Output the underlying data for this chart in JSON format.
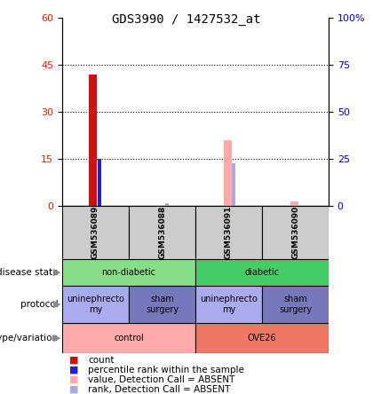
{
  "title": "GDS3990 / 1427532_at",
  "samples": [
    "GSM536089",
    "GSM536088",
    "GSM536091",
    "GSM536090"
  ],
  "bar_positions": [
    0,
    1,
    2,
    3
  ],
  "count_values": [
    42,
    0,
    0,
    0
  ],
  "percentile_values": [
    15,
    0,
    0,
    0
  ],
  "absent_value_values": [
    0,
    0,
    21,
    1.5
  ],
  "absent_rank_values": [
    0,
    0.8,
    13.5,
    0
  ],
  "ylim_left": [
    0,
    60
  ],
  "ylim_right": [
    0,
    100
  ],
  "yticks_left": [
    0,
    15,
    30,
    45,
    60
  ],
  "yticks_right": [
    0,
    25,
    50,
    75,
    100
  ],
  "ytick_labels_right": [
    "0",
    "25",
    "50",
    "75",
    "100%"
  ],
  "color_count": "#cc1111",
  "color_percentile": "#2222cc",
  "color_absent_value": "#ffaaaa",
  "color_absent_rank": "#aaaadd",
  "disease_state": [
    {
      "label": "non-diabetic",
      "start": 0,
      "end": 1,
      "color": "#88dd88"
    },
    {
      "label": "diabetic",
      "start": 2,
      "end": 3,
      "color": "#44cc66"
    }
  ],
  "protocol": [
    {
      "label": "uninephrecto\nmy",
      "start": 0,
      "end": 0,
      "color": "#aaaaee"
    },
    {
      "label": "sham\nsurgery",
      "start": 1,
      "end": 1,
      "color": "#7777bb"
    },
    {
      "label": "uninephrecto\nmy",
      "start": 2,
      "end": 2,
      "color": "#aaaaee"
    },
    {
      "label": "sham\nsurgery",
      "start": 3,
      "end": 3,
      "color": "#7777bb"
    }
  ],
  "genotype": [
    {
      "label": "control",
      "start": 0,
      "end": 1,
      "color": "#ffaaaa"
    },
    {
      "label": "OVE26",
      "start": 2,
      "end": 3,
      "color": "#ee7766"
    }
  ],
  "annotation_labels": [
    "disease state",
    "protocol",
    "genotype/variation"
  ],
  "legend_items": [
    {
      "color": "#cc1111",
      "label": "count"
    },
    {
      "color": "#2222cc",
      "label": "percentile rank within the sample"
    },
    {
      "color": "#ffaaaa",
      "label": "value, Detection Call = ABSENT"
    },
    {
      "color": "#aaaadd",
      "label": "rank, Detection Call = ABSENT"
    }
  ]
}
